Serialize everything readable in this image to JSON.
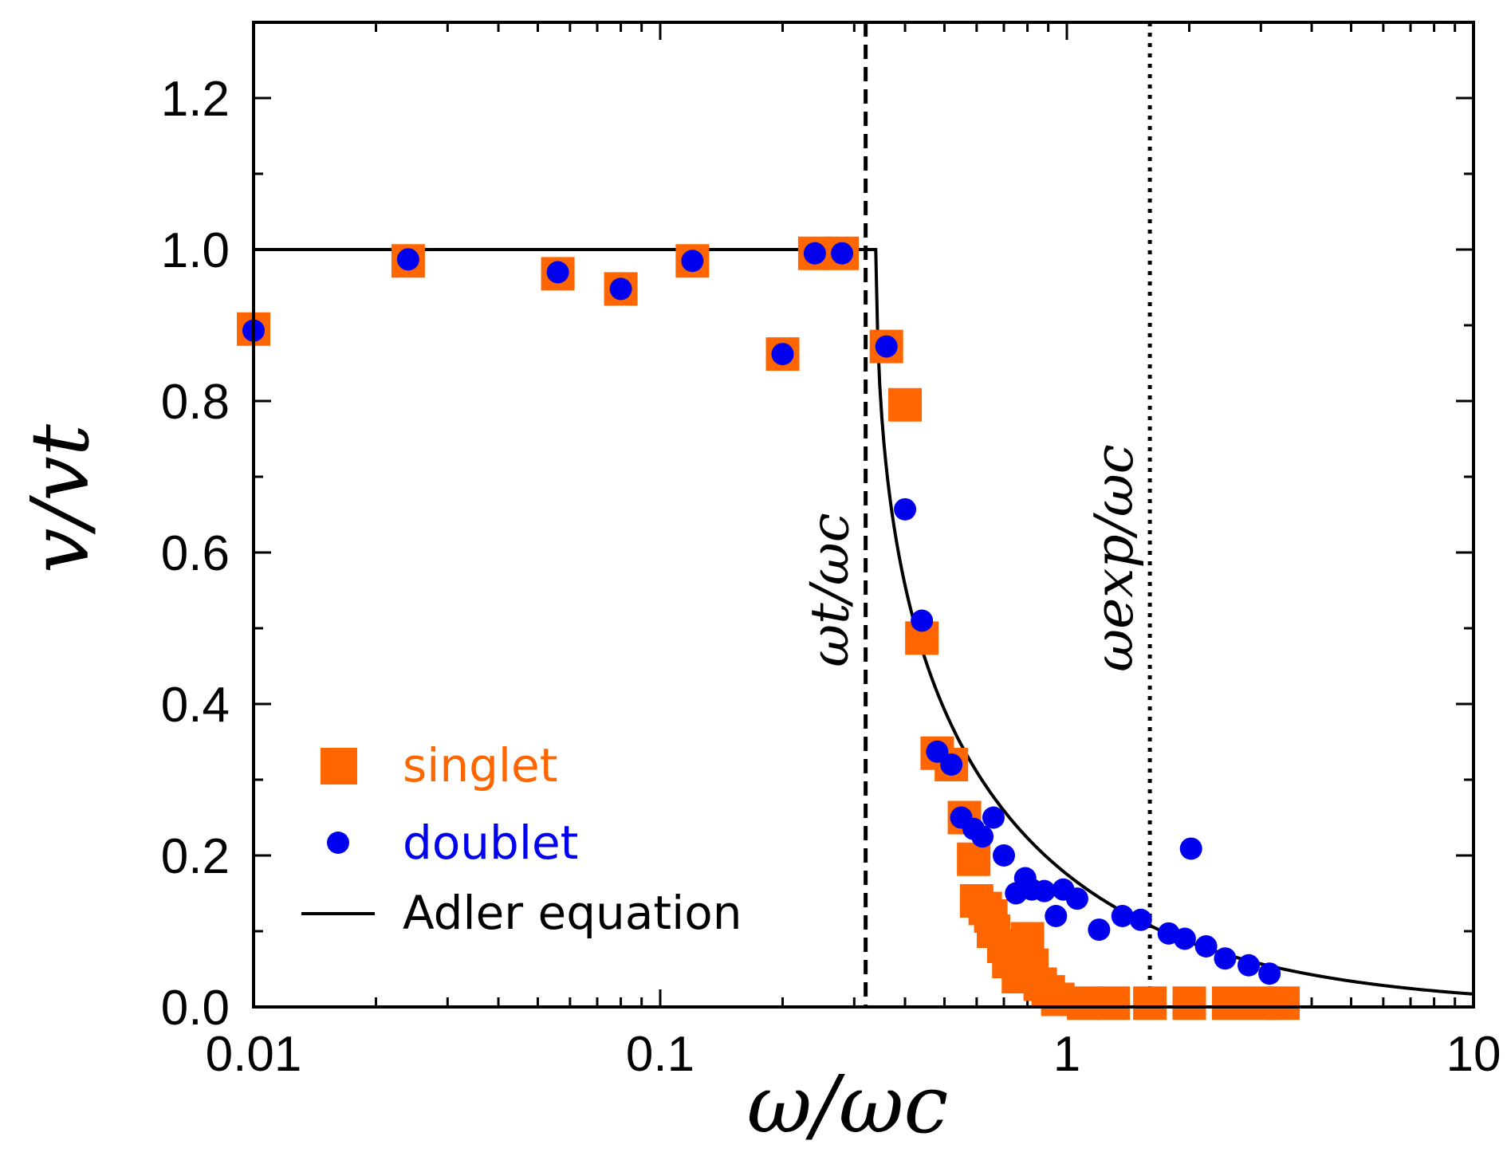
{
  "chart_data": {
    "type": "scatter",
    "x_scale": "log",
    "xlim": [
      0.01,
      10
    ],
    "ylim": [
      0,
      1.3
    ],
    "x_ticks": [
      0.01,
      0.1,
      1,
      10
    ],
    "x_tick_labels": [
      "0.01",
      "0.1",
      "1",
      "10"
    ],
    "y_ticks": [
      0,
      0.2,
      0.4,
      0.6,
      0.8,
      1.0,
      1.2
    ],
    "y_tick_labels": [
      "0.0",
      "0.2",
      "0.4",
      "0.6",
      "0.8",
      "1.0",
      "1.2"
    ],
    "xlabel": "ω/ωc",
    "ylabel": "v/vt",
    "legend_position": "bottom-left",
    "colors": {
      "singlet": "#ff6600",
      "doublet": "#0000ee",
      "adler": "#000000"
    },
    "series": [
      {
        "name": "singlet",
        "marker": "square",
        "points": [
          [
            0.01,
            0.895
          ],
          [
            0.024,
            0.985
          ],
          [
            0.056,
            0.968
          ],
          [
            0.08,
            0.948
          ],
          [
            0.12,
            0.985
          ],
          [
            0.2,
            0.862
          ],
          [
            0.24,
            0.995
          ],
          [
            0.28,
            0.995
          ],
          [
            0.36,
            0.872
          ],
          [
            0.4,
            0.795
          ],
          [
            0.44,
            0.487
          ],
          [
            0.48,
            0.335
          ],
          [
            0.52,
            0.32
          ],
          [
            0.56,
            0.25
          ],
          [
            0.59,
            0.195
          ],
          [
            0.6,
            0.14
          ],
          [
            0.63,
            0.13
          ],
          [
            0.65,
            0.12
          ],
          [
            0.66,
            0.1
          ],
          [
            0.7,
            0.08
          ],
          [
            0.72,
            0.06
          ],
          [
            0.76,
            0.04
          ],
          [
            0.8,
            0.09
          ],
          [
            0.82,
            0.055
          ],
          [
            0.86,
            0.03
          ],
          [
            0.9,
            0.02
          ],
          [
            0.95,
            0.01
          ],
          [
            1.1,
            0.005
          ],
          [
            1.3,
            0.005
          ],
          [
            1.6,
            0.005
          ],
          [
            2.0,
            0.005
          ],
          [
            2.5,
            0.005
          ],
          [
            3.0,
            0.005
          ],
          [
            3.4,
            0.005
          ]
        ]
      },
      {
        "name": "doublet",
        "marker": "circle",
        "points": [
          [
            0.01,
            0.893
          ],
          [
            0.024,
            0.987
          ],
          [
            0.056,
            0.97
          ],
          [
            0.08,
            0.948
          ],
          [
            0.12,
            0.985
          ],
          [
            0.2,
            0.862
          ],
          [
            0.24,
            0.995
          ],
          [
            0.28,
            0.995
          ],
          [
            0.36,
            0.872
          ],
          [
            0.4,
            0.657
          ],
          [
            0.44,
            0.51
          ],
          [
            0.48,
            0.337
          ],
          [
            0.52,
            0.32
          ],
          [
            0.55,
            0.25
          ],
          [
            0.59,
            0.235
          ],
          [
            0.62,
            0.225
          ],
          [
            0.66,
            0.25
          ],
          [
            0.7,
            0.2
          ],
          [
            0.75,
            0.15
          ],
          [
            0.79,
            0.17
          ],
          [
            0.82,
            0.155
          ],
          [
            0.88,
            0.153
          ],
          [
            0.94,
            0.12
          ],
          [
            0.98,
            0.155
          ],
          [
            1.06,
            0.143
          ],
          [
            1.2,
            0.102
          ],
          [
            1.37,
            0.12
          ],
          [
            1.52,
            0.115
          ],
          [
            1.78,
            0.097
          ],
          [
            1.95,
            0.09
          ],
          [
            2.02,
            0.209
          ],
          [
            2.2,
            0.08
          ],
          [
            2.45,
            0.064
          ],
          [
            2.8,
            0.055
          ],
          [
            3.15,
            0.044
          ]
        ]
      },
      {
        "name": "Adler equation",
        "marker": "line",
        "critical_x": 0.34,
        "plateau_y": 1.0
      }
    ],
    "legend": [
      "singlet",
      "doublet",
      "Adler equation"
    ],
    "vertical_lines": [
      {
        "x": 0.32,
        "style": "dashed",
        "label": "ωt/ωc"
      },
      {
        "x": 1.6,
        "style": "dotted",
        "label": "ωexp/ωc"
      }
    ]
  }
}
